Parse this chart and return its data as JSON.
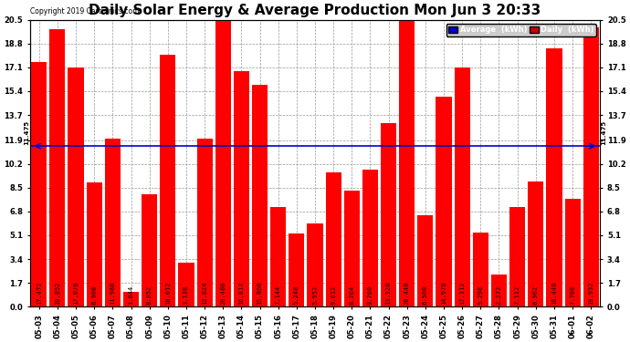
{
  "title": "Daily Solar Energy & Average Production Mon Jun 3 20:33",
  "copyright": "Copyright 2019 Cartronics.com",
  "categories": [
    "05-03",
    "05-04",
    "05-05",
    "05-06",
    "05-07",
    "05-08",
    "05-09",
    "05-10",
    "05-11",
    "05-12",
    "05-13",
    "05-14",
    "05-15",
    "05-16",
    "05-17",
    "05-18",
    "05-19",
    "05-20",
    "05-21",
    "05-22",
    "05-23",
    "05-24",
    "05-25",
    "05-26",
    "05-27",
    "05-28",
    "05-29",
    "05-30",
    "05-31",
    "06-01",
    "06-02"
  ],
  "values": [
    17.472,
    19.852,
    17.076,
    8.908,
    11.988,
    1.044,
    8.052,
    18.012,
    3.138,
    12.024,
    20.48,
    16.812,
    15.86,
    7.144,
    5.248,
    5.952,
    9.612,
    8.264,
    9.76,
    13.12,
    20.44,
    6.56,
    14.976,
    17.112,
    5.298,
    2.272,
    7.112,
    8.962,
    18.44,
    7.708,
    19.932
  ],
  "average": 11.475,
  "bar_color": "#ff0000",
  "avg_line_color": "#0000cc",
  "background_color": "#ffffff",
  "grid_color": "#999999",
  "ylim": [
    0.0,
    20.5
  ],
  "yticks": [
    0.0,
    1.7,
    3.4,
    5.1,
    6.8,
    8.5,
    10.2,
    11.9,
    13.7,
    15.4,
    17.1,
    18.8,
    20.5
  ],
  "legend_avg_color": "#0000cc",
  "legend_daily_color": "#cc0000",
  "avg_label_text": "11.475",
  "title_fontsize": 11,
  "tick_fontsize": 6,
  "value_fontsize": 5,
  "bar_width": 0.85
}
